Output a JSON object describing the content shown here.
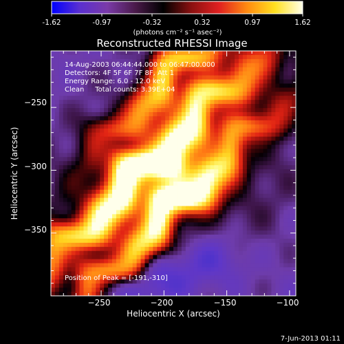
{
  "colorbar": {
    "tick_labels": [
      "-1.62",
      "-0.97",
      "-0.32",
      "0.32",
      "0.97",
      "1.62"
    ],
    "range": [
      -1.62,
      1.62
    ],
    "unit_label": "(photons cm⁻² s⁻¹ asec⁻²)",
    "palette": [
      "#0000ff",
      "#5a2fd0",
      "#7a3aa8",
      "#4a1a4a",
      "#000000",
      "#8a1010",
      "#e02020",
      "#ff8a10",
      "#ffe020",
      "#ffffe8"
    ]
  },
  "footer": {
    "timestamp": "7-Jun-2013 01:11"
  },
  "chart_data": {
    "type": "heatmap",
    "title": "Reconstructed RHESSI Image",
    "xlabel": "Heliocentric X (arcsec)",
    "ylabel": "Heliocentric Y (arcsec)",
    "xlim": [
      -290,
      -95
    ],
    "ylim": [
      -400,
      -205
    ],
    "x_ticks": [
      -250,
      -200,
      -150,
      -100
    ],
    "y_ticks": [
      -250,
      -300,
      -350
    ],
    "x_tick_labels": [
      "−250",
      "−200",
      "−150",
      "−100"
    ],
    "y_tick_labels": [
      "−250",
      "−300",
      "−350"
    ],
    "annotations": [
      "14-Aug-2003 06:44:44.000 to 06:47:00.000",
      "Detectors: 4F 5F 6F 7F 8F, Att 1",
      "Energy Range: 6.0 - 12.0 keV",
      "Clean     Total counts: 3.39E+04"
    ],
    "peak_label": "Position of Peak = [-191,-310]",
    "peak": [
      -191,
      -310
    ],
    "colors": {
      "background": "#6a3fa0",
      "low": "#2a2ad0",
      "peak": "#ffffe8"
    }
  }
}
